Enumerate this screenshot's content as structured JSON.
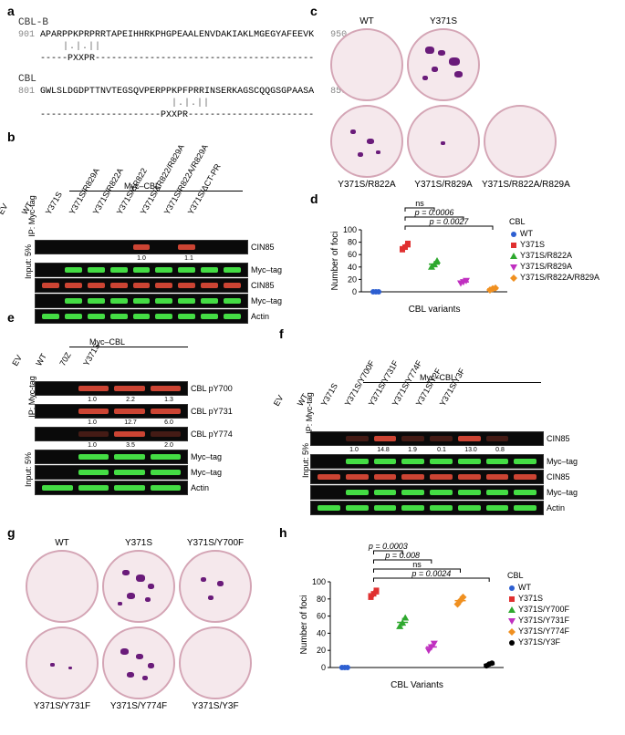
{
  "panel_a": {
    "label": "a",
    "cblb_title": "CBL-B",
    "cblb_seq_start": "901",
    "cblb_seq": "APARPPKPRPRRTAPEIHHRKPHGPEAALENVDAKIAKLMGEGYAFEEVK",
    "cblb_seq_end": "950",
    "cblb_align": "-----PXXPR----------------------------------------",
    "cbl_title": "CBL",
    "cbl_seq_start": "801",
    "cbl_seq": "GWLSLDGDPTTNVTEGSQVPERPPKPFPRRINSERKAGSCQQGSGPAASA",
    "cbl_seq_end": "850",
    "cbl_align": "----------------------PXXPR-----------------------"
  },
  "panel_b": {
    "label": "b",
    "samples": [
      "EV",
      "WT",
      "Y371S",
      "Y371S/R829A",
      "Y371S/R822A",
      "Y371S/ΔR822",
      "Y371S/ΔR822/R829A",
      "Y371S/R822A/R829A",
      "Y371S/ΔCT-PR"
    ],
    "top_anno": "Myc–CBL",
    "rows": [
      {
        "label": "CIN85",
        "color": "red",
        "bands": [
          0,
          0,
          0,
          0,
          1,
          0,
          1,
          0,
          0
        ],
        "quant": [
          "",
          "",
          "",
          "",
          "1.0",
          "",
          "1.1",
          "",
          ""
        ]
      },
      {
        "label": "Myc–tag",
        "color": "green",
        "bands": [
          0,
          1,
          1,
          1,
          1,
          1,
          1,
          1,
          1
        ]
      },
      {
        "label": "CIN85",
        "color": "red",
        "bands": [
          1,
          1,
          1,
          1,
          1,
          1,
          1,
          1,
          1
        ]
      },
      {
        "label": "Myc–tag",
        "color": "green",
        "bands": [
          0,
          1,
          1,
          1,
          1,
          1,
          1,
          1,
          1
        ]
      },
      {
        "label": "Actin",
        "color": "green",
        "bands": [
          1,
          1,
          1,
          1,
          1,
          1,
          1,
          1,
          1
        ]
      }
    ],
    "side_ip": "IP: Myc-tag",
    "side_input": "Input: 5%"
  },
  "panel_c": {
    "label": "c",
    "top": [
      "WT",
      "Y371S"
    ],
    "bottom": [
      "Y371S/R822A",
      "Y371S/R829A",
      "Y371S/R822A/R829A"
    ]
  },
  "panel_d": {
    "label": "d",
    "ylabel": "Number of foci",
    "xlabel": "CBL variants",
    "ylim": [
      0,
      100
    ],
    "ytick": 20,
    "pvals": [
      "ns",
      "p = 0.0006",
      "p = 0.0027"
    ],
    "series": [
      {
        "name": "WT",
        "color": "#2d5fd1",
        "shape": "circle",
        "y": [
          0,
          0,
          0
        ]
      },
      {
        "name": "Y371S",
        "color": "#e03030",
        "shape": "square",
        "y": [
          68,
          72,
          78
        ]
      },
      {
        "name": "Y371S/R822A",
        "color": "#2ea82e",
        "shape": "triangle-up",
        "y": [
          40,
          44,
          50
        ]
      },
      {
        "name": "Y371S/R829A",
        "color": "#c030c0",
        "shape": "triangle-down",
        "y": [
          14,
          16,
          18
        ]
      },
      {
        "name": "Y371S/R822A/R829A",
        "color": "#f09020",
        "shape": "diamond",
        "y": [
          3,
          5,
          6
        ]
      }
    ],
    "legend_title": "CBL"
  },
  "panel_e": {
    "label": "e",
    "samples": [
      "EV",
      "WT",
      "70Z",
      "Y371S"
    ],
    "top_anno": "Myc–CBL",
    "rows": [
      {
        "label": "CBL pY700",
        "color": "red",
        "bands": [
          0,
          1,
          1,
          1
        ],
        "quant": [
          "",
          "1.0",
          "2.2",
          "1.3"
        ]
      },
      {
        "label": "CBL pY731",
        "color": "red",
        "bands": [
          0,
          1,
          1,
          1
        ],
        "quant": [
          "",
          "1.0",
          "12.7",
          "6.0"
        ]
      },
      {
        "label": "CBL pY774",
        "color": "red",
        "bands": [
          0,
          0.3,
          1,
          0.6
        ],
        "quant": [
          "",
          "1.0",
          "3.5",
          "2.0"
        ]
      },
      {
        "label": "Myc–tag",
        "color": "green",
        "bands": [
          0,
          1,
          1,
          1
        ]
      },
      {
        "label": "Myc–tag",
        "color": "green",
        "bands": [
          0,
          1,
          1,
          1
        ]
      },
      {
        "label": "Actin",
        "color": "green",
        "bands": [
          1,
          1,
          1,
          1
        ]
      }
    ],
    "side_ip": "IP: Myc-tag",
    "side_input": "Input: 5%"
  },
  "panel_f": {
    "label": "f",
    "samples": [
      "EV",
      "WT",
      "Y371S",
      "Y371S/Y700F",
      "Y371S/Y731F",
      "Y371S/Y774F",
      "Y371S/Y2F",
      "Y371S/Y3F"
    ],
    "top_anno": "Myc–CBL",
    "rows": [
      {
        "label": "CIN85",
        "color": "red",
        "bands": [
          0,
          0.3,
          1,
          0.3,
          0.1,
          1,
          0.2,
          0
        ],
        "quant": [
          "",
          "1.0",
          "14.8",
          "1.9",
          "0.1",
          "13.0",
          "0.8",
          ""
        ]
      },
      {
        "label": "Myc–tag",
        "color": "green",
        "bands": [
          0,
          1,
          1,
          1,
          1,
          1,
          1,
          1
        ]
      },
      {
        "label": "CIN85",
        "color": "red",
        "bands": [
          1,
          1,
          1,
          1,
          1,
          1,
          1,
          1
        ]
      },
      {
        "label": "Myc–tag",
        "color": "green",
        "bands": [
          0,
          1,
          1,
          1,
          1,
          1,
          1,
          1
        ]
      },
      {
        "label": "Actin",
        "color": "green",
        "bands": [
          1,
          1,
          1,
          1,
          1,
          1,
          1,
          1
        ]
      }
    ],
    "side_ip": "IP: Myc-tag",
    "side_input": "Input: 5%"
  },
  "panel_g": {
    "label": "g",
    "top": [
      "WT",
      "Y371S",
      "Y371S/Y700F"
    ],
    "bottom": [
      "Y371S/Y731F",
      "Y371S/Y774F",
      "Y371S/Y3F"
    ]
  },
  "panel_h": {
    "label": "h",
    "ylabel": "Number of foci",
    "xlabel": "CBL Variants",
    "ylim": [
      0,
      100
    ],
    "ytick": 20,
    "pvals": [
      "p = 0.0003",
      "p = 0.008",
      "ns",
      "p = 0.0024"
    ],
    "series": [
      {
        "name": "WT",
        "color": "#2d5fd1",
        "shape": "circle",
        "y": [
          0,
          0,
          0
        ]
      },
      {
        "name": "Y371S",
        "color": "#e03030",
        "shape": "square",
        "y": [
          82,
          86,
          90
        ]
      },
      {
        "name": "Y371S/Y700F",
        "color": "#2ea82e",
        "shape": "triangle-up",
        "y": [
          48,
          52,
          58
        ]
      },
      {
        "name": "Y371S/Y731F",
        "color": "#c030c0",
        "shape": "triangle-down",
        "y": [
          20,
          24,
          28
        ]
      },
      {
        "name": "Y371S/Y774F",
        "color": "#f09020",
        "shape": "diamond",
        "y": [
          74,
          78,
          82
        ]
      },
      {
        "name": "Y371S/Y3F",
        "color": "#000000",
        "shape": "circle",
        "y": [
          2,
          4,
          5
        ]
      }
    ],
    "legend_title": "CBL"
  }
}
